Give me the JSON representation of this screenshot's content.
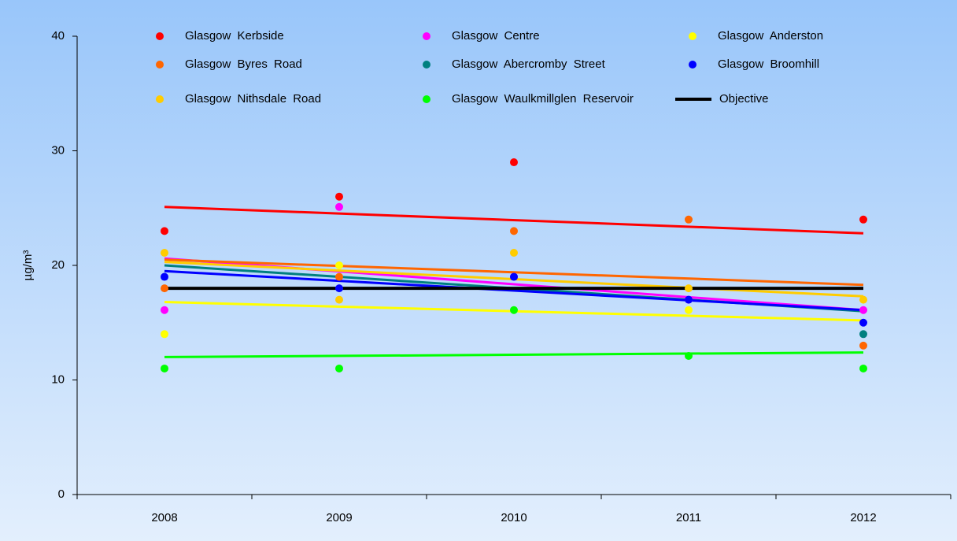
{
  "chart_data": {
    "type": "scatter",
    "y_label": "µg/m³",
    "categories": [
      "2008",
      "2009",
      "2010",
      "2011",
      "2012"
    ],
    "ylim": [
      0,
      40
    ],
    "yticks": [
      0,
      10,
      20,
      30,
      40
    ],
    "series": [
      {
        "name": "Glasgow Kerbside",
        "color": "#ff0000",
        "values": [
          23,
          26,
          29,
          null,
          24
        ],
        "trend": [
          25.1,
          22.8
        ]
      },
      {
        "name": "Glasgow Centre",
        "color": "#ff00ff",
        "values": [
          16.1,
          25.1,
          19,
          17,
          16.1
        ],
        "trend": [
          20.6,
          16.1
        ]
      },
      {
        "name": "Glasgow Anderston",
        "color": "#ffff00",
        "values": [
          14,
          20,
          null,
          16.1,
          null
        ],
        "trend": [
          16.8,
          15.2
        ]
      },
      {
        "name": "Glasgow Byres Road",
        "color": "#ff6600",
        "values": [
          18,
          19,
          23,
          24,
          13
        ],
        "trend": [
          20.5,
          18.3
        ]
      },
      {
        "name": "Glasgow Abercromby Street",
        "color": "#008080",
        "values": [
          null,
          null,
          null,
          null,
          14
        ],
        "trend": [
          20,
          16
        ]
      },
      {
        "name": "Glasgow Broomhill",
        "color": "#0000ff",
        "values": [
          19,
          18,
          19,
          17,
          15
        ],
        "trend": [
          19.5,
          16.1
        ]
      },
      {
        "name": "Glasgow Nithsdale Road",
        "color": "#ffcc00",
        "values": [
          21.1,
          17,
          21.1,
          18,
          17
        ],
        "trend": [
          20.3,
          17.3
        ]
      },
      {
        "name": "Glasgow Waulkmillglen Reservoir",
        "color": "#00ff00",
        "values": [
          11,
          11,
          16.1,
          12.1,
          11
        ],
        "trend": [
          12,
          12.4
        ]
      },
      {
        "name": "Objective",
        "color": "#000000",
        "values": [
          18,
          18,
          18,
          18,
          18
        ],
        "line": true
      }
    ]
  }
}
